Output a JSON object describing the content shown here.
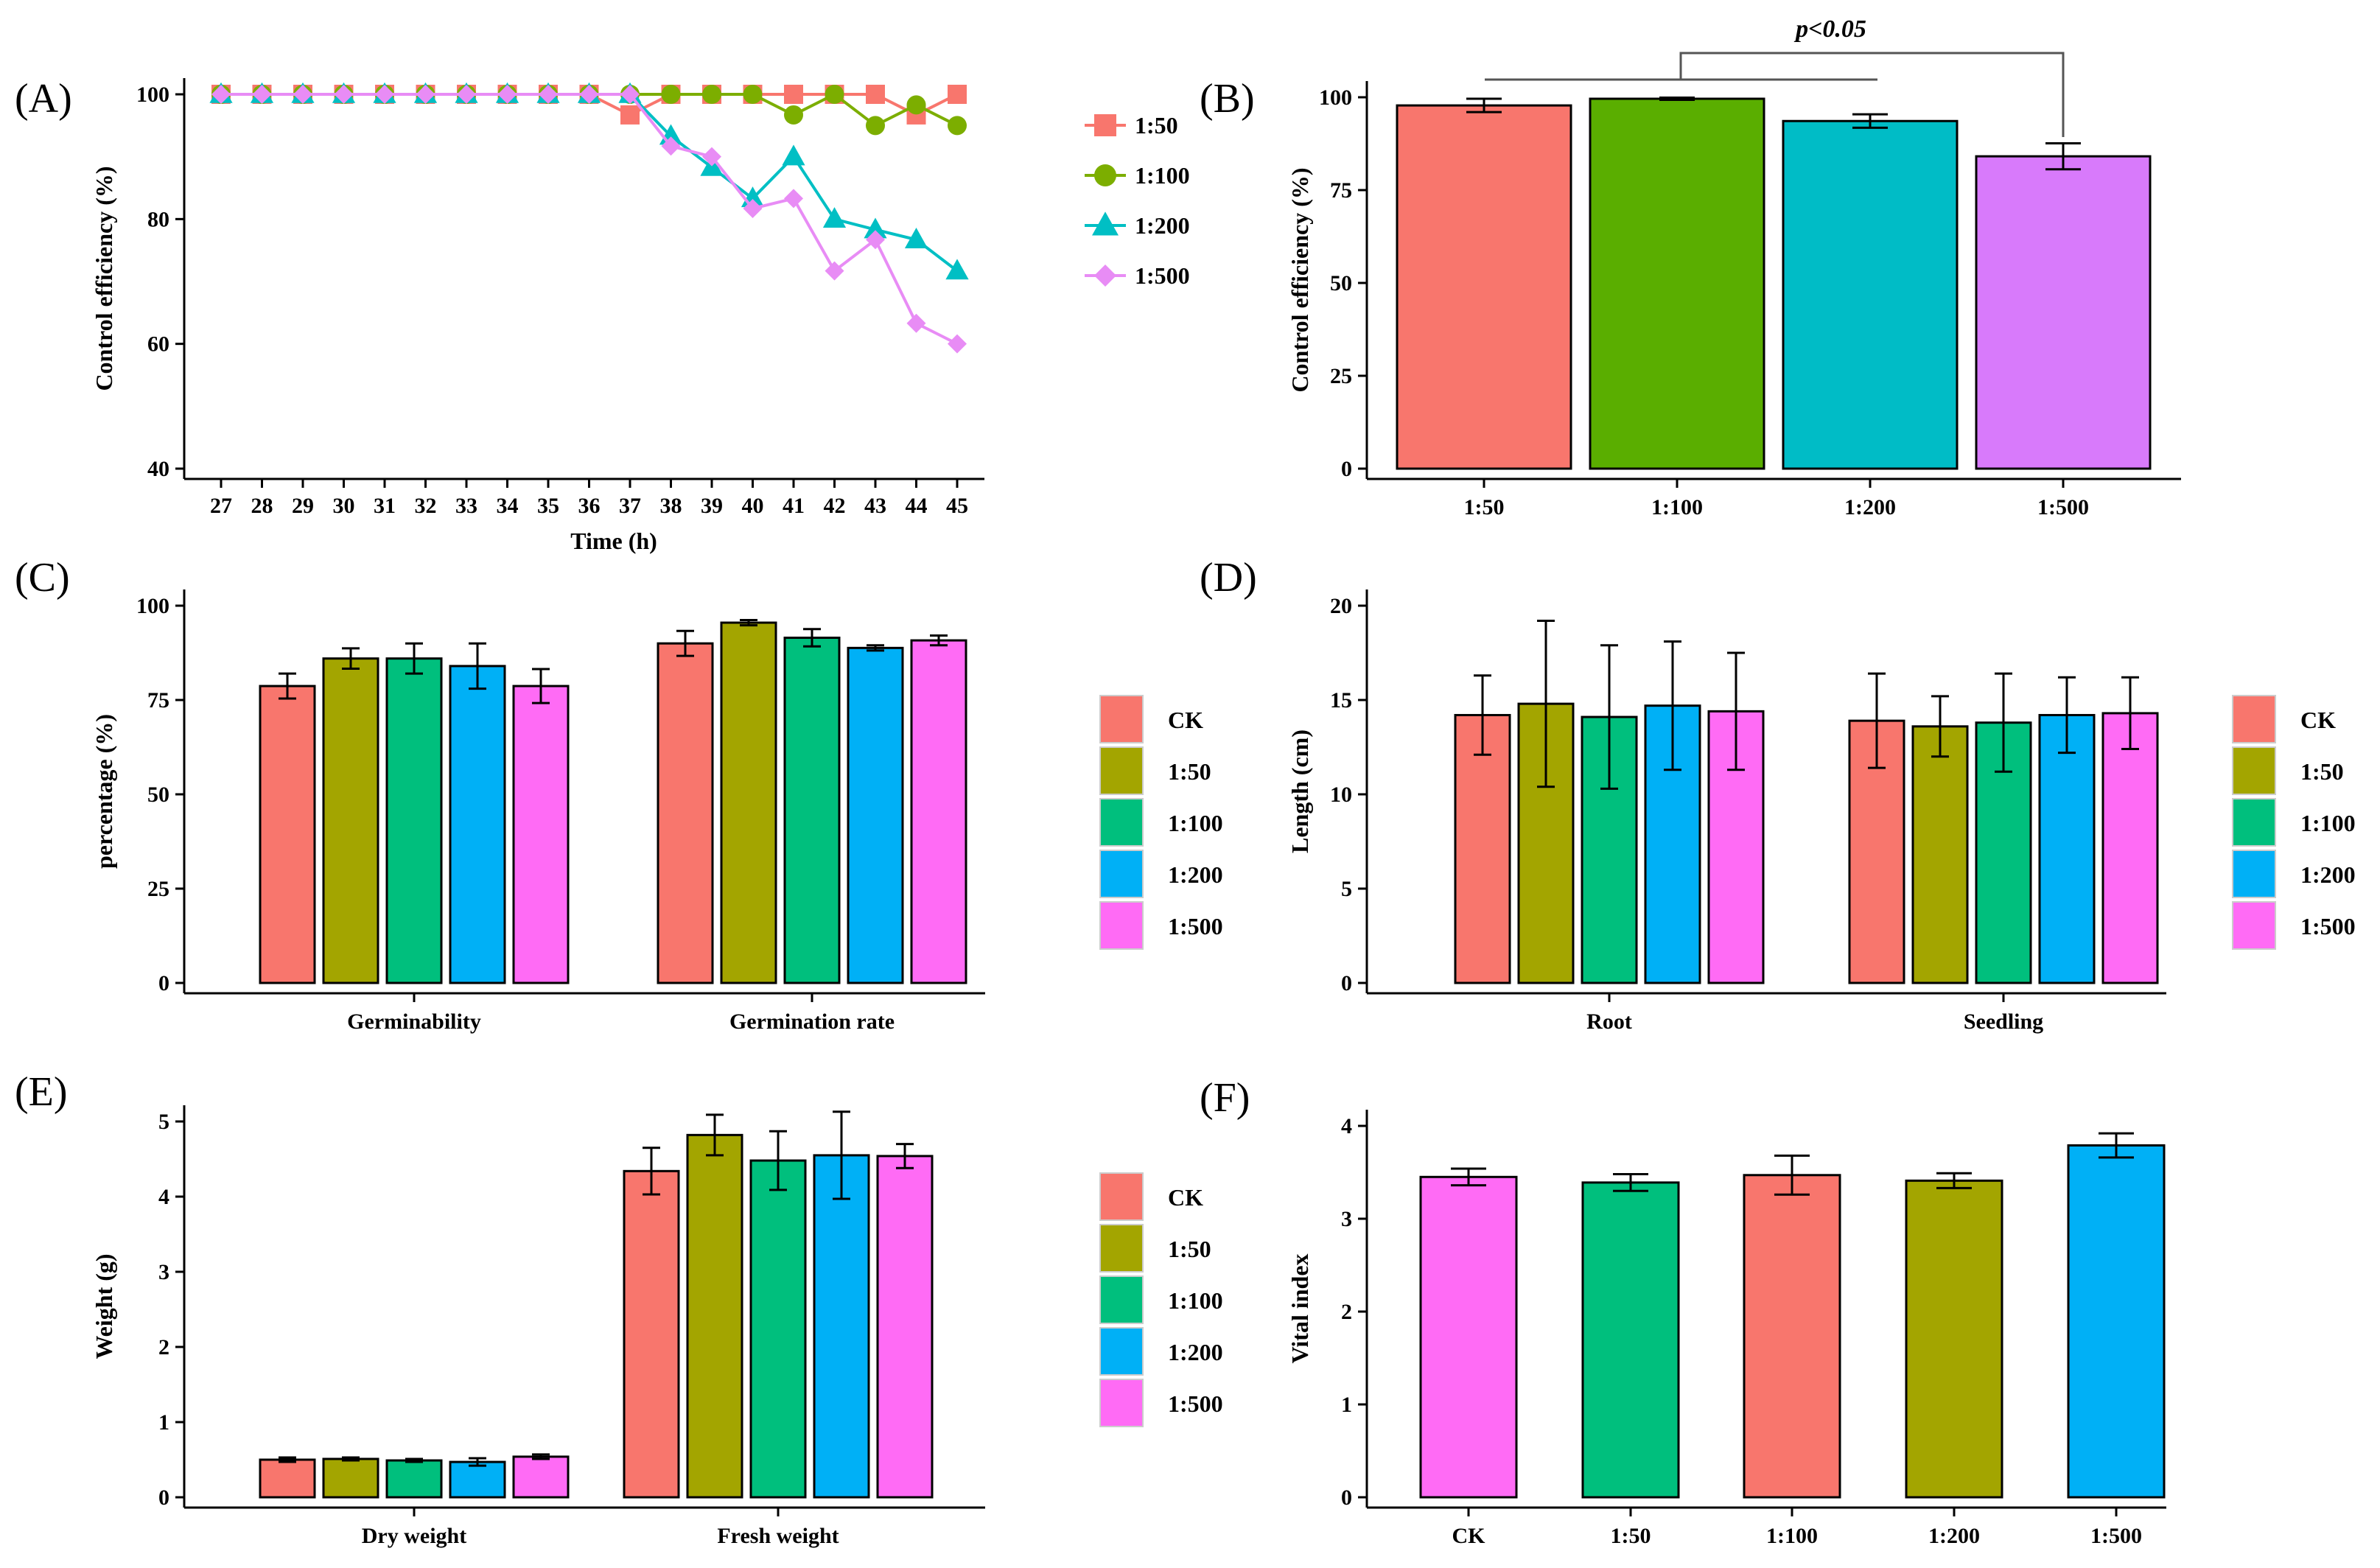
{
  "colors": {
    "red": "#F8766D",
    "olive": "#A3A500",
    "green": "#00BF7D",
    "blue": "#00B0F6",
    "pink": "#E76BF3",
    "pinkB": "#D87AFB",
    "greenB": "#5AAE00",
    "tealB": "#00BCC6",
    "magenta": "#FF6BF5",
    "lineRed": "#F8766D",
    "lineGreen": "#7CAE00",
    "lineTeal": "#00BFC4",
    "lineViolet": "#E88CF5"
  },
  "chart_data": [
    {
      "panel": "A",
      "panel_label": "(A)",
      "type": "line",
      "xlabel": "Time (h)",
      "ylabel": "Control efficiency (%)",
      "ylim": [
        40,
        100
      ],
      "yticks": [
        "40",
        "60",
        "80",
        "100"
      ],
      "x": [
        "27",
        "28",
        "29",
        "30",
        "31",
        "32",
        "33",
        "34",
        "35",
        "36",
        "37",
        "38",
        "39",
        "40",
        "41",
        "42",
        "43",
        "44",
        "45"
      ],
      "series": [
        {
          "name": "1:50",
          "marker": "square",
          "color": "#F8766D",
          "values": [
            100,
            100,
            100,
            100,
            100,
            100,
            100,
            100,
            100,
            100,
            96.7,
            100,
            100,
            100,
            100,
            100,
            100,
            96.7,
            100
          ]
        },
        {
          "name": "1:100",
          "marker": "circle",
          "color": "#7CAE00",
          "values": [
            100,
            100,
            100,
            100,
            100,
            100,
            100,
            100,
            100,
            100,
            100,
            100,
            100,
            100,
            96.7,
            100,
            95,
            98.3,
            95
          ]
        },
        {
          "name": "1:200",
          "marker": "triangle",
          "color": "#00BFC4",
          "values": [
            100,
            100,
            100,
            100,
            100,
            100,
            100,
            100,
            100,
            100,
            100,
            93.3,
            88.3,
            83.3,
            90,
            80,
            78.3,
            76.7,
            71.7
          ]
        },
        {
          "name": "1:500",
          "marker": "diamond",
          "color": "#E88CF5",
          "values": [
            100,
            100,
            100,
            100,
            100,
            100,
            100,
            100,
            100,
            100,
            100,
            91.7,
            90,
            81.7,
            83.3,
            71.7,
            76.7,
            63.3,
            60
          ]
        }
      ]
    },
    {
      "panel": "B",
      "panel_label": "(B)",
      "type": "bar",
      "xlabel": "",
      "ylabel": "Control efficiency (%)",
      "ylim": [
        0,
        100
      ],
      "yticks": [
        "0",
        "25",
        "50",
        "75",
        "100"
      ],
      "categories": [
        "1:50",
        "1:100",
        "1:200",
        "1:500"
      ],
      "values": [
        97.8,
        99.6,
        93.6,
        84.1
      ],
      "errors": [
        1.8,
        0.3,
        1.8,
        3.5
      ],
      "colors": [
        "#F8766D",
        "#5AAE00",
        "#00BCC6",
        "#D87AFB"
      ],
      "annotation": "p<0.05"
    },
    {
      "panel": "C",
      "panel_label": "(C)",
      "type": "bar",
      "xlabel": "",
      "ylabel": "percentage (%)",
      "ylim": [
        0,
        100
      ],
      "yticks": [
        "0",
        "25",
        "50",
        "75",
        "100"
      ],
      "categories": [
        "Germinability",
        "Germination rate"
      ],
      "series": [
        {
          "name": "CK",
          "values": [
            78.7,
            90.0
          ],
          "errors": [
            3.3,
            3.3
          ],
          "color": "#F8766D"
        },
        {
          "name": "1:50",
          "values": [
            86.0,
            95.5
          ],
          "errors": [
            2.7,
            0.7
          ],
          "color": "#A3A500"
        },
        {
          "name": "1:100",
          "values": [
            86.0,
            91.5
          ],
          "errors": [
            4.0,
            2.3
          ],
          "color": "#00BF7D"
        },
        {
          "name": "1:200",
          "values": [
            84.0,
            88.8
          ],
          "errors": [
            6.0,
            0.7
          ],
          "color": "#00B0F6"
        },
        {
          "name": "1:500",
          "values": [
            78.7,
            90.8
          ],
          "errors": [
            4.5,
            1.3
          ],
          "color": "#FF6BF5"
        }
      ]
    },
    {
      "panel": "D",
      "panel_label": "(D)",
      "type": "bar",
      "xlabel": "",
      "ylabel": "Length (cm)",
      "ylim": [
        0,
        20
      ],
      "yticks": [
        "0",
        "5",
        "10",
        "15",
        "20"
      ],
      "categories": [
        "Root",
        "Seedling"
      ],
      "series": [
        {
          "name": "CK",
          "values": [
            14.2,
            13.9
          ],
          "errors": [
            2.1,
            2.5
          ],
          "color": "#F8766D"
        },
        {
          "name": "1:50",
          "values": [
            14.8,
            13.6
          ],
          "errors": [
            4.4,
            1.6
          ],
          "color": "#A3A500"
        },
        {
          "name": "1:100",
          "values": [
            14.1,
            13.8
          ],
          "errors": [
            3.8,
            2.6
          ],
          "color": "#00BF7D"
        },
        {
          "name": "1:200",
          "values": [
            14.7,
            14.2
          ],
          "errors": [
            3.4,
            2.0
          ],
          "color": "#00B0F6"
        },
        {
          "name": "1:500",
          "values": [
            14.4,
            14.3
          ],
          "errors": [
            3.1,
            1.9
          ],
          "color": "#FF6BF5"
        }
      ]
    },
    {
      "panel": "E",
      "panel_label": "(E)",
      "type": "bar",
      "xlabel": "",
      "ylabel": "Weight (g)",
      "ylim": [
        0,
        5
      ],
      "yticks": [
        "0",
        "1",
        "2",
        "3",
        "4",
        "5"
      ],
      "categories": [
        "Dry weight",
        "Fresh weight"
      ],
      "series": [
        {
          "name": "CK",
          "values": [
            0.5,
            4.34
          ],
          "errors": [
            0.03,
            0.31
          ],
          "color": "#F8766D"
        },
        {
          "name": "1:50",
          "values": [
            0.51,
            4.82
          ],
          "errors": [
            0.02,
            0.27
          ],
          "color": "#A3A500"
        },
        {
          "name": "1:100",
          "values": [
            0.49,
            4.48
          ],
          "errors": [
            0.02,
            0.39
          ],
          "color": "#00BF7D"
        },
        {
          "name": "1:200",
          "values": [
            0.47,
            4.55
          ],
          "errors": [
            0.05,
            0.58
          ],
          "color": "#00B0F6"
        },
        {
          "name": "1:500",
          "values": [
            0.54,
            4.54
          ],
          "errors": [
            0.03,
            0.16
          ],
          "color": "#FF6BF5"
        }
      ]
    },
    {
      "panel": "F",
      "panel_label": "(F)",
      "type": "bar",
      "xlabel": "",
      "ylabel": "Vital index",
      "ylim": [
        0,
        4
      ],
      "yticks": [
        "0",
        "1",
        "2",
        "3",
        "4"
      ],
      "categories": [
        "CK",
        "1:50",
        "1:100",
        "1:200",
        "1:500"
      ],
      "values": [
        3.45,
        3.39,
        3.47,
        3.41,
        3.79
      ],
      "errors": [
        0.09,
        0.09,
        0.21,
        0.08,
        0.13
      ],
      "colors": [
        "#FF6BF5",
        "#00BF7D",
        "#F8766D",
        "#A3A500",
        "#00B0F6"
      ]
    }
  ]
}
